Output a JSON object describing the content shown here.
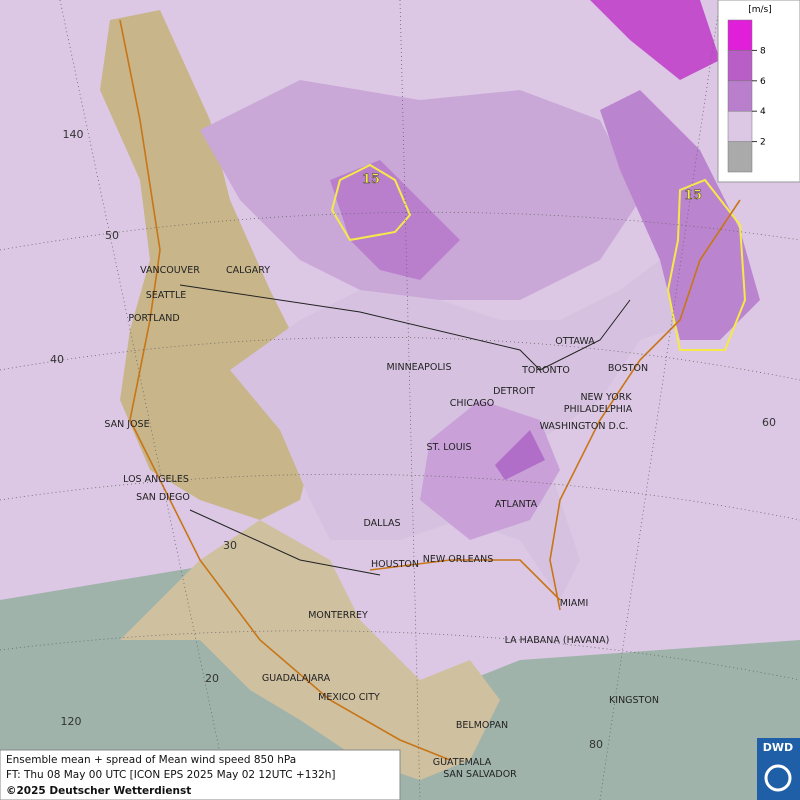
{
  "map": {
    "cities": [
      "VANCOUVER",
      "CALGARY",
      "SEATTLE",
      "PORTLAND",
      "SAN JOSE",
      "LOS ANGELES",
      "SAN DIEGO",
      "MINNEAPOLIS",
      "TORONTO",
      "OTTAWA",
      "DETROIT",
      "CHICAGO",
      "BOSTON",
      "NEW YORK",
      "PHILADELPHIA",
      "WASHINGTON D.C.",
      "ST. LOUIS",
      "ATLANTA",
      "DALLAS",
      "HOUSTON",
      "NEW ORLEANS",
      "MIAMI",
      "MONTERREY",
      "LA HABANA (HAVANA)",
      "GUADALAJARA",
      "MEXICO CITY",
      "BELMOPAN",
      "KINGSTON",
      "GUATEMALA",
      "SAN SALVADOR"
    ],
    "grid_labels": [
      "140",
      "50",
      "40",
      "30",
      "20",
      "120",
      "60",
      "80"
    ],
    "contour_labels": [
      "15",
      "15"
    ],
    "legend": {
      "unit": "[m/s]",
      "ticks": [
        8,
        6,
        4,
        2
      ]
    },
    "caption": [
      "Ensemble mean + spread of Mean wind speed 850 hPa",
      "FT: Thu 08 May 00 UTC [ICON EPS 2025 May 02 12UTC +132h]",
      "©2025 Deutscher Wetterdienst"
    ],
    "logo": "DWD"
  }
}
